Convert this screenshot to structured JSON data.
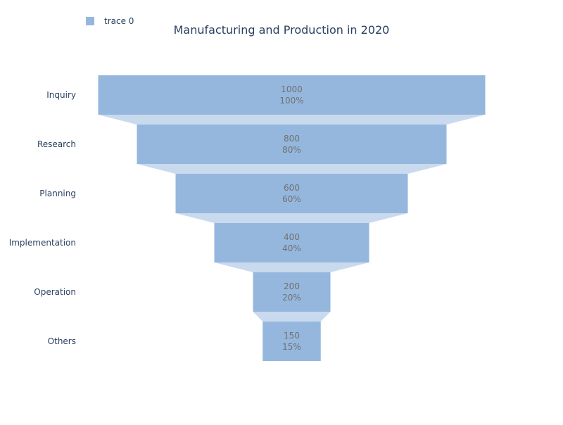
{
  "chart_data": {
    "type": "funnel",
    "title": "Manufacturing and Production in 2020",
    "categories": [
      "Inquiry",
      "Research",
      "Planning",
      "Implementation",
      "Operation",
      "Others"
    ],
    "series": [
      {
        "name": "trace 0",
        "values": [
          1000,
          800,
          600,
          400,
          200,
          150
        ],
        "percent_labels": [
          "100%",
          "80%",
          "60%",
          "40%",
          "20%",
          "15%"
        ]
      }
    ],
    "legend_position": "top-left",
    "colors": {
      "bar": "#95b7dd",
      "connector": "#c9daee",
      "value_text": "#707070",
      "axis_text": "#2a3f5f"
    }
  }
}
